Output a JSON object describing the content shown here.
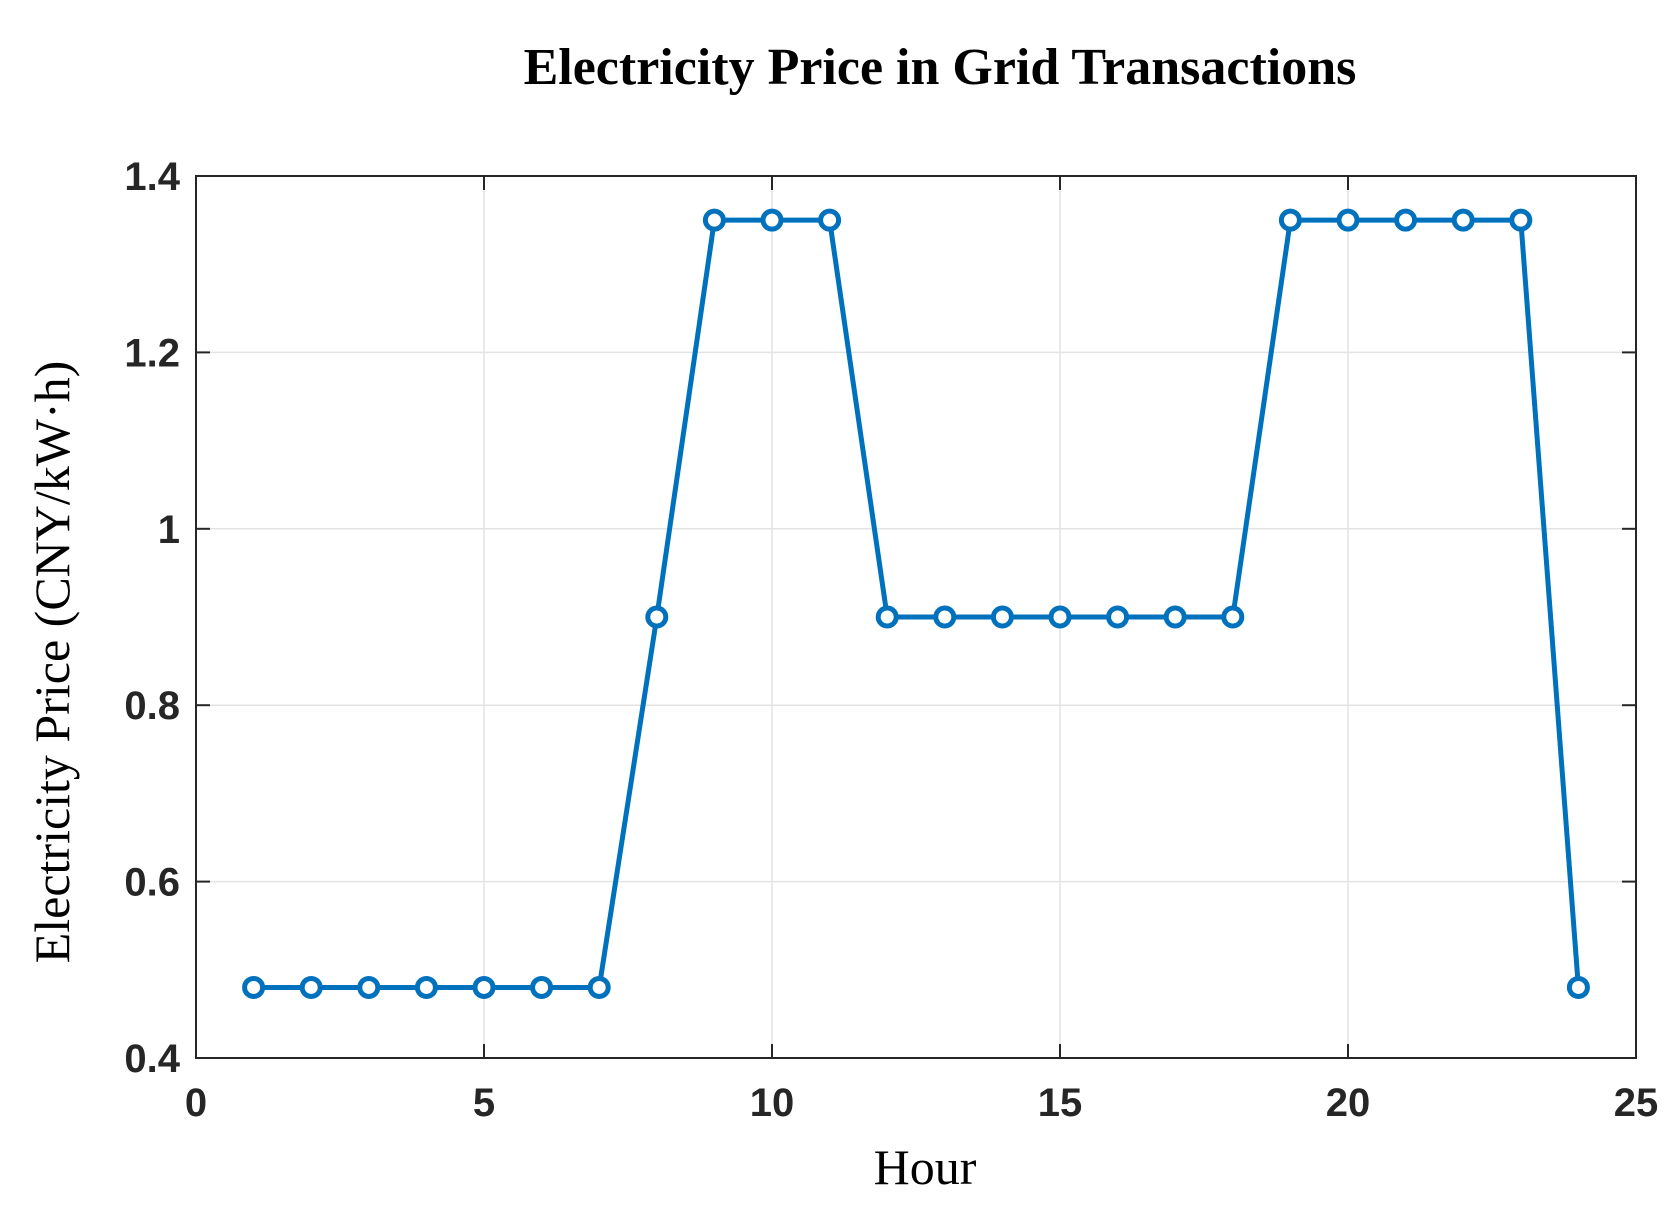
{
  "chart_data": {
    "type": "line",
    "title": "Electricity Price in Grid Transactions",
    "xlabel": "Hour",
    "ylabel": "Electricity Price (CNY/kW·h)",
    "xlim": [
      0,
      25
    ],
    "ylim": [
      0.4,
      1.4
    ],
    "xticks": [
      0,
      5,
      10,
      15,
      20,
      25
    ],
    "xtick_labels": [
      "0",
      "5",
      "10",
      "15",
      "20",
      "25"
    ],
    "yticks": [
      0.4,
      0.6,
      0.8,
      1.0,
      1.2,
      1.4
    ],
    "ytick_labels": [
      "0.4",
      "0.6",
      "0.8",
      "1",
      "1.2",
      "1.4"
    ],
    "grid": true,
    "marker": "circle",
    "color": "#0072BD",
    "x": [
      1,
      2,
      3,
      4,
      5,
      6,
      7,
      8,
      9,
      10,
      11,
      12,
      13,
      14,
      15,
      16,
      17,
      18,
      19,
      20,
      21,
      22,
      23,
      24
    ],
    "series": [
      {
        "values": [
          0.48,
          0.48,
          0.48,
          0.48,
          0.48,
          0.48,
          0.48,
          0.9,
          1.35,
          1.35,
          1.35,
          0.9,
          0.9,
          0.9,
          0.9,
          0.9,
          0.9,
          0.9,
          1.35,
          1.35,
          1.35,
          1.35,
          1.35,
          0.48
        ]
      }
    ]
  }
}
